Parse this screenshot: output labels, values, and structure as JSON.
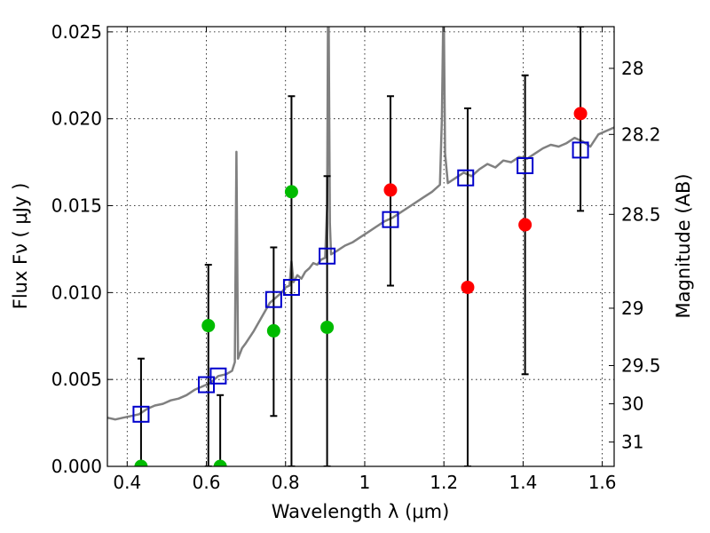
{
  "chart_data": {
    "type": "scatter",
    "xlabel": "Wavelength  λ (μm)",
    "ylabel": "Flux  Fν  ( μJy )",
    "y2label": "Magnitude (AB)",
    "xlim": [
      0.35,
      1.63
    ],
    "ylim": [
      0.0,
      0.0253
    ],
    "grid": true,
    "x_ticks": [
      0.4,
      0.6,
      0.8,
      1.0,
      1.2,
      1.4,
      1.6
    ],
    "x_tick_labels": [
      "0.4",
      "0.6",
      "0.8",
      "1",
      "1.2",
      "1.4",
      "1.6"
    ],
    "y_ticks": [
      0.0,
      0.005,
      0.01,
      0.015,
      0.02,
      0.025
    ],
    "y_tick_labels": [
      "0.000",
      "0.005",
      "0.010",
      "0.015",
      "0.020",
      "0.025"
    ],
    "y2_ticks": [
      {
        "label": "28",
        "flux": 0.0229
      },
      {
        "label": "28.2",
        "flux": 0.0191
      },
      {
        "label": "28.5",
        "flux": 0.0145
      },
      {
        "label": "29",
        "flux": 0.0091
      },
      {
        "label": "29.5",
        "flux": 0.0058
      },
      {
        "label": "30",
        "flux": 0.0036
      },
      {
        "label": "31",
        "flux": 0.0014
      }
    ],
    "colors": {
      "model": "#808080",
      "synthetic": "#0000cc",
      "detections": "#ff0000",
      "optical": "#00bb00",
      "errorbar": "#000000"
    },
    "model_spectrum": [
      [
        0.35,
        0.0028
      ],
      [
        0.37,
        0.0027
      ],
      [
        0.39,
        0.0028
      ],
      [
        0.41,
        0.0029
      ],
      [
        0.43,
        0.003
      ],
      [
        0.45,
        0.0033
      ],
      [
        0.47,
        0.0035
      ],
      [
        0.49,
        0.0036
      ],
      [
        0.51,
        0.0038
      ],
      [
        0.53,
        0.0039
      ],
      [
        0.55,
        0.0041
      ],
      [
        0.57,
        0.0044
      ],
      [
        0.59,
        0.0046
      ],
      [
        0.61,
        0.0048
      ],
      [
        0.63,
        0.0052
      ],
      [
        0.65,
        0.0053
      ],
      [
        0.665,
        0.0055
      ],
      [
        0.672,
        0.006
      ],
      [
        0.676,
        0.0181
      ],
      [
        0.68,
        0.0062
      ],
      [
        0.69,
        0.0068
      ],
      [
        0.7,
        0.0071
      ],
      [
        0.72,
        0.0078
      ],
      [
        0.74,
        0.0086
      ],
      [
        0.76,
        0.0094
      ],
      [
        0.78,
        0.0098
      ],
      [
        0.79,
        0.01
      ],
      [
        0.8,
        0.0103
      ],
      [
        0.81,
        0.0104
      ],
      [
        0.815,
        0.0118
      ],
      [
        0.82,
        0.0106
      ],
      [
        0.83,
        0.011
      ],
      [
        0.84,
        0.0108
      ],
      [
        0.85,
        0.0112
      ],
      [
        0.86,
        0.0114
      ],
      [
        0.87,
        0.0117
      ],
      [
        0.88,
        0.0116
      ],
      [
        0.89,
        0.0119
      ],
      [
        0.9,
        0.012
      ],
      [
        0.905,
        0.015
      ],
      [
        0.907,
        0.0253
      ],
      [
        0.909,
        0.0253
      ],
      [
        0.912,
        0.014
      ],
      [
        0.915,
        0.0122
      ],
      [
        0.93,
        0.0124
      ],
      [
        0.95,
        0.0127
      ],
      [
        0.97,
        0.0129
      ],
      [
        0.99,
        0.0132
      ],
      [
        1.01,
        0.0135
      ],
      [
        1.03,
        0.0138
      ],
      [
        1.05,
        0.0141
      ],
      [
        1.07,
        0.0143
      ],
      [
        1.09,
        0.0146
      ],
      [
        1.11,
        0.0149
      ],
      [
        1.13,
        0.0152
      ],
      [
        1.15,
        0.0155
      ],
      [
        1.17,
        0.0158
      ],
      [
        1.19,
        0.0162
      ],
      [
        1.195,
        0.02
      ],
      [
        1.198,
        0.0253
      ],
      [
        1.2,
        0.0253
      ],
      [
        1.203,
        0.018
      ],
      [
        1.21,
        0.0163
      ],
      [
        1.23,
        0.0166
      ],
      [
        1.25,
        0.0169
      ],
      [
        1.27,
        0.0167
      ],
      [
        1.29,
        0.0171
      ],
      [
        1.31,
        0.0174
      ],
      [
        1.33,
        0.0172
      ],
      [
        1.35,
        0.0176
      ],
      [
        1.37,
        0.0175
      ],
      [
        1.39,
        0.0178
      ],
      [
        1.41,
        0.0177
      ],
      [
        1.43,
        0.018
      ],
      [
        1.45,
        0.0183
      ],
      [
        1.47,
        0.0185
      ],
      [
        1.49,
        0.0184
      ],
      [
        1.51,
        0.0186
      ],
      [
        1.53,
        0.0189
      ],
      [
        1.55,
        0.0187
      ],
      [
        1.57,
        0.0184
      ],
      [
        1.59,
        0.0191
      ],
      [
        1.61,
        0.0193
      ],
      [
        1.63,
        0.0195
      ]
    ],
    "synthetic_photometry": [
      {
        "x": 0.435,
        "y": 0.003
      },
      {
        "x": 0.6,
        "y": 0.0047
      },
      {
        "x": 0.63,
        "y": 0.0052
      },
      {
        "x": 0.77,
        "y": 0.0096
      },
      {
        "x": 0.815,
        "y": 0.0103
      },
      {
        "x": 0.905,
        "y": 0.0121
      },
      {
        "x": 1.065,
        "y": 0.0142
      },
      {
        "x": 1.255,
        "y": 0.0166
      },
      {
        "x": 1.405,
        "y": 0.0173
      },
      {
        "x": 1.545,
        "y": 0.0182
      }
    ],
    "error_bars": [
      {
        "x": 0.435,
        "y": 0.003,
        "low": 0.0,
        "high": 0.0062
      },
      {
        "x": 0.605,
        "y": 0.0047,
        "low": 0.0,
        "high": 0.0116
      },
      {
        "x": 0.635,
        "y": 0.0,
        "low": 0.0,
        "high": 0.0041
      },
      {
        "x": 0.77,
        "y": 0.0078,
        "low": 0.0029,
        "high": 0.0126
      },
      {
        "x": 0.815,
        "y": 0.0104,
        "low": 0.0,
        "high": 0.0213
      },
      {
        "x": 0.905,
        "y": 0.008,
        "low": 0.0,
        "high": 0.0167
      },
      {
        "x": 1.065,
        "y": 0.0159,
        "low": 0.0104,
        "high": 0.0213
      },
      {
        "x": 1.26,
        "y": 0.0103,
        "low": 0.0,
        "high": 0.0206
      },
      {
        "x": 1.405,
        "y": 0.0139,
        "low": 0.0053,
        "high": 0.0225
      },
      {
        "x": 1.545,
        "y": 0.0203,
        "low": 0.0147,
        "high": 0.0253
      }
    ],
    "detections": [
      {
        "x": 1.065,
        "y": 0.0159
      },
      {
        "x": 1.26,
        "y": 0.0103
      },
      {
        "x": 1.405,
        "y": 0.0139
      },
      {
        "x": 1.545,
        "y": 0.0203
      }
    ],
    "optical_points": [
      {
        "x": 0.435,
        "y": 0.0
      },
      {
        "x": 0.605,
        "y": 0.0081
      },
      {
        "x": 0.635,
        "y": 0.0
      },
      {
        "x": 0.77,
        "y": 0.0078
      },
      {
        "x": 0.815,
        "y": 0.0158
      },
      {
        "x": 0.905,
        "y": 0.008
      }
    ]
  }
}
